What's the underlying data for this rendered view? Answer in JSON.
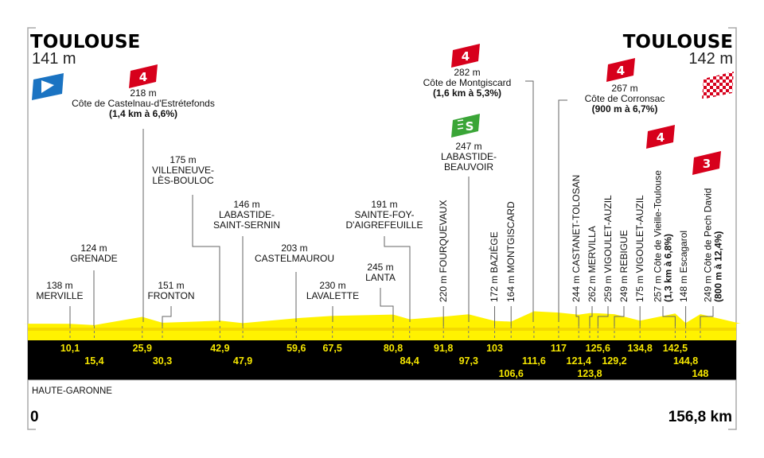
{
  "start": {
    "city": "TOULOUSE",
    "altitude": "141 m",
    "icon": "start-flag-icon"
  },
  "finish": {
    "city": "TOULOUSE",
    "altitude": "142 m",
    "icon": "checkered-flag-icon"
  },
  "region": "HAUTE-GARONNE",
  "distance_start": "0",
  "distance_end": "156,8 km",
  "colors": {
    "profile": "#fff200",
    "band": "#000000",
    "km_text": "#f5e600",
    "climb_badge": "#d7001c",
    "sprint_badge": "#3aa537",
    "start_badge": "#1a73c2"
  },
  "points": [
    {
      "km": 10.1,
      "km_label": "10,1",
      "elev": 138,
      "lines": [
        "138 m",
        "MERVILLE"
      ]
    },
    {
      "km": 15.4,
      "km_label": "15,4",
      "elev": 124,
      "lines": [
        "124 m",
        "GRENADE"
      ]
    },
    {
      "km": 25.9,
      "km_label": "25,9",
      "elev": 218,
      "lines": [
        "218 m",
        "Côte de Castelnau-d'Estrétefonds",
        "(1,4 km à 6,6%)"
      ],
      "badge": "4"
    },
    {
      "km": 30.3,
      "km_label": "30,3",
      "elev": 151,
      "lines": [
        "151 m",
        "FRONTON"
      ]
    },
    {
      "km": 42.9,
      "km_label": "42,9",
      "elev": 175,
      "lines": [
        "175 m",
        "VILLENEUVE-",
        "LÈS-BOULOC"
      ]
    },
    {
      "km": 47.9,
      "km_label": "47,9",
      "elev": 146,
      "lines": [
        "146 m",
        "LABASTIDE-",
        "SAINT-SERNIN"
      ]
    },
    {
      "km": 59.6,
      "km_label": "59,6",
      "elev": 203,
      "lines": [
        "203 m",
        "CASTELMAUROU"
      ]
    },
    {
      "km": 67.5,
      "km_label": "67,5",
      "elev": 230,
      "lines": [
        "230 m",
        "LAVALETTE"
      ]
    },
    {
      "km": 80.8,
      "km_label": "80,8",
      "elev": 245,
      "lines": [
        "245 m",
        "LANTA"
      ]
    },
    {
      "km": 84.4,
      "km_label": "84,4",
      "elev": 191,
      "lines": [
        "191 m",
        "SAINTE-FOY-",
        "D'AIGREFEUILLE"
      ]
    },
    {
      "km": 91.8,
      "km_label": "91,8",
      "elev": 220,
      "lines": [
        "220 m FOURQUEVAUX"
      ]
    },
    {
      "km": 97.3,
      "km_label": "97,3",
      "elev": 247,
      "lines": [
        "247 m",
        "LABASTIDE-",
        "BEAUVOIR"
      ],
      "badge": "S"
    },
    {
      "km": 103,
      "km_label": "103",
      "elev": 172,
      "lines": [
        "172 m BAZIÈGE"
      ]
    },
    {
      "km": 106.6,
      "km_label": "106,6",
      "elev": 164,
      "lines": [
        "164 m MONTGISCARD"
      ]
    },
    {
      "km": 111.6,
      "km_label": "111,6",
      "elev": 282,
      "lines": [
        "282 m",
        "Côte de Montgiscard",
        "(1,6 km à 5,3%)"
      ],
      "badge": "4"
    },
    {
      "km": 117,
      "km_label": "117",
      "elev": 267,
      "lines": [
        "267 m",
        "Côte de Corronsac",
        "(900 m à 6,7%)"
      ],
      "badge": "4"
    },
    {
      "km": 121.4,
      "km_label": "121,4",
      "elev": 244,
      "lines": [
        "244 m CASTANET-TOLOSAN"
      ]
    },
    {
      "km": 123.8,
      "km_label": "123,8",
      "elev": 262,
      "lines": [
        "262 m MERVILLA"
      ]
    },
    {
      "km": 125.6,
      "km_label": "125,6",
      "elev": 259,
      "lines": [
        "259 m VIGOULET-AUZIL"
      ]
    },
    {
      "km": 129.2,
      "km_label": "129,2",
      "elev": 249,
      "lines": [
        "249 m REBIGUE"
      ]
    },
    {
      "km": 134.8,
      "km_label": "134,8",
      "elev": 175,
      "lines": [
        "175 m VIGOULET-AUZIL"
      ]
    },
    {
      "km": 142.5,
      "km_label": "142,5",
      "elev": 257,
      "lines": [
        "257 m Côte de Vieille-Toulouse",
        "(1,3 km à 6,8%)"
      ],
      "badge": "4"
    },
    {
      "km": 144.8,
      "km_label": "144,8",
      "elev": 148,
      "lines": [
        "148 m Escagarol"
      ]
    },
    {
      "km": 148,
      "km_label": "148",
      "elev": 249,
      "lines": [
        "249 m Côte de Pech David",
        "(800 m à 12,4%)"
      ],
      "badge": "3"
    }
  ]
}
